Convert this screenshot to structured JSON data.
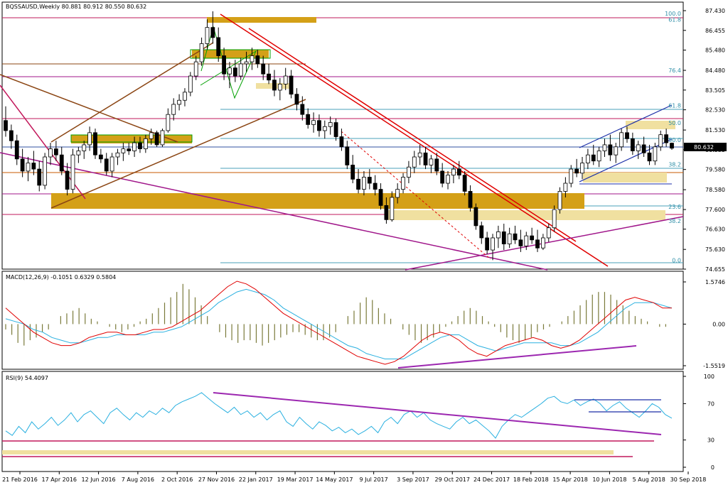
{
  "chart_data": [
    {
      "type": "candlestick",
      "title": "BQSSAUSD,Weekly  80.881 80.912 80.550 80.632",
      "price_axis_ticks": [
        "87.430",
        "86.455",
        "85.480",
        "84.480",
        "83.505",
        "82.530",
        "81.530",
        "80.555",
        "79.580",
        "78.580",
        "77.600",
        "76.630",
        "75.630",
        "74.655"
      ],
      "price_axis_values": [
        87.43,
        86.455,
        85.48,
        84.48,
        83.505,
        82.53,
        81.53,
        80.555,
        79.58,
        78.58,
        77.6,
        76.63,
        75.63,
        74.655
      ],
      "current_price_label": "80.632",
      "current_price": 80.632,
      "fib_levels": [
        {
          "label": "100.0",
          "value": 87.15
        },
        {
          "label": "61.8",
          "value": 86.85
        },
        {
          "label": "76.4",
          "value": 84.35
        },
        {
          "label": "61.8",
          "value": 82.6
        },
        {
          "label": "50.0",
          "value": 81.75
        },
        {
          "label": "50.0",
          "value": 80.9
        },
        {
          "label": "38.2",
          "value": 79.7
        },
        {
          "label": "23.6",
          "value": 77.6
        },
        {
          "label": "38.2",
          "value": 76.9
        },
        {
          "label": "0.0",
          "value": 74.95
        }
      ],
      "candles": [
        [
          82.0,
          82.7,
          81.2,
          81.5
        ],
        [
          81.5,
          81.8,
          80.6,
          81.0
        ],
        [
          81.0,
          81.3,
          79.8,
          80.1
        ],
        [
          80.1,
          80.6,
          79.2,
          79.5
        ],
        [
          79.5,
          80.2,
          79.0,
          79.9
        ],
        [
          79.9,
          80.5,
          79.3,
          79.6
        ],
        [
          79.6,
          80.0,
          78.5,
          78.8
        ],
        [
          78.8,
          80.4,
          78.6,
          80.2
        ],
        [
          80.2,
          80.9,
          79.8,
          80.6
        ],
        [
          80.6,
          81.0,
          80.0,
          80.3
        ],
        [
          80.3,
          80.7,
          79.3,
          79.5
        ],
        [
          79.5,
          79.9,
          78.3,
          78.6
        ],
        [
          78.6,
          80.6,
          78.4,
          80.3
        ],
        [
          80.3,
          80.7,
          79.9,
          80.5
        ],
        [
          80.5,
          81.0,
          80.1,
          80.8
        ],
        [
          80.8,
          81.7,
          80.5,
          81.4
        ],
        [
          81.4,
          81.6,
          80.1,
          80.3
        ],
        [
          80.3,
          80.6,
          79.9,
          80.1
        ],
        [
          80.1,
          80.4,
          79.3,
          79.5
        ],
        [
          79.5,
          80.4,
          79.2,
          80.2
        ],
        [
          80.2,
          80.6,
          79.8,
          80.4
        ],
        [
          80.4,
          80.9,
          80.0,
          80.6
        ],
        [
          80.6,
          80.9,
          80.3,
          80.5
        ],
        [
          80.5,
          81.2,
          80.2,
          80.9
        ],
        [
          80.9,
          81.2,
          80.4,
          80.6
        ],
        [
          80.6,
          81.3,
          80.4,
          81.1
        ],
        [
          81.1,
          81.6,
          80.8,
          81.4
        ],
        [
          81.4,
          81.5,
          80.7,
          80.8
        ],
        [
          80.8,
          81.6,
          80.7,
          81.5
        ],
        [
          81.5,
          82.6,
          81.4,
          82.3
        ],
        [
          82.3,
          83.1,
          82.0,
          82.8
        ],
        [
          82.8,
          83.3,
          82.5,
          83.0
        ],
        [
          83.0,
          83.6,
          82.7,
          83.4
        ],
        [
          83.4,
          84.4,
          83.2,
          84.2
        ],
        [
          84.2,
          85.2,
          84.0,
          84.9
        ],
        [
          84.9,
          86.1,
          84.7,
          85.8
        ],
        [
          85.8,
          87.0,
          85.5,
          86.6
        ],
        [
          86.6,
          87.4,
          85.8,
          86.1
        ],
        [
          86.1,
          86.6,
          84.9,
          85.2
        ],
        [
          85.2,
          85.6,
          84.0,
          84.3
        ],
        [
          84.3,
          84.9,
          83.6,
          84.6
        ],
        [
          84.6,
          85.0,
          83.9,
          84.2
        ],
        [
          84.2,
          85.1,
          84.0,
          84.8
        ],
        [
          84.8,
          85.4,
          84.4,
          84.9
        ],
        [
          84.9,
          85.6,
          84.5,
          85.2
        ],
        [
          85.2,
          85.5,
          84.6,
          84.8
        ],
        [
          84.8,
          85.2,
          84.0,
          84.3
        ],
        [
          84.3,
          84.8,
          83.8,
          84.0
        ],
        [
          84.0,
          84.5,
          83.2,
          83.5
        ],
        [
          83.5,
          84.1,
          83.0,
          83.8
        ],
        [
          83.8,
          84.6,
          83.5,
          84.2
        ],
        [
          84.2,
          84.5,
          83.1,
          83.3
        ],
        [
          83.3,
          83.6,
          82.5,
          82.8
        ],
        [
          82.8,
          83.2,
          82.0,
          82.3
        ],
        [
          82.3,
          82.6,
          81.6,
          81.8
        ],
        [
          81.8,
          82.4,
          81.4,
          82.0
        ],
        [
          82.0,
          82.3,
          81.2,
          81.5
        ],
        [
          81.5,
          82.0,
          81.1,
          81.7
        ],
        [
          81.7,
          82.2,
          81.3,
          81.9
        ],
        [
          81.9,
          82.1,
          81.0,
          81.2
        ],
        [
          81.2,
          81.6,
          80.5,
          80.7
        ],
        [
          80.7,
          81.0,
          79.6,
          79.8
        ],
        [
          79.8,
          80.3,
          78.9,
          79.1
        ],
        [
          79.1,
          79.6,
          78.4,
          78.6
        ],
        [
          78.6,
          79.5,
          78.3,
          79.2
        ],
        [
          79.2,
          79.6,
          78.6,
          78.9
        ],
        [
          78.9,
          79.3,
          78.3,
          78.6
        ],
        [
          78.6,
          78.9,
          77.6,
          77.8
        ],
        [
          77.8,
          78.2,
          76.9,
          77.1
        ],
        [
          77.1,
          78.5,
          77.0,
          78.2
        ],
        [
          78.2,
          78.9,
          77.9,
          78.6
        ],
        [
          78.6,
          79.4,
          78.4,
          79.2
        ],
        [
          79.2,
          80.0,
          78.9,
          79.7
        ],
        [
          79.7,
          80.5,
          79.4,
          80.2
        ],
        [
          80.2,
          80.8,
          79.8,
          80.4
        ],
        [
          80.4,
          80.7,
          79.6,
          79.8
        ],
        [
          79.8,
          80.3,
          79.4,
          80.1
        ],
        [
          80.1,
          80.4,
          79.3,
          79.5
        ],
        [
          79.5,
          79.9,
          78.7,
          78.9
        ],
        [
          78.9,
          79.5,
          78.6,
          79.3
        ],
        [
          79.3,
          79.8,
          78.9,
          79.6
        ],
        [
          79.6,
          80.0,
          79.1,
          79.3
        ],
        [
          79.3,
          79.5,
          78.3,
          78.5
        ],
        [
          78.5,
          78.8,
          77.5,
          77.7
        ],
        [
          77.7,
          77.9,
          76.6,
          76.8
        ],
        [
          76.8,
          77.0,
          75.9,
          76.2
        ],
        [
          76.2,
          76.5,
          75.4,
          75.6
        ],
        [
          75.6,
          76.4,
          75.1,
          76.2
        ],
        [
          76.2,
          76.8,
          75.7,
          76.5
        ],
        [
          76.5,
          76.9,
          75.6,
          75.9
        ],
        [
          75.9,
          76.7,
          75.7,
          76.4
        ],
        [
          76.4,
          76.8,
          75.9,
          76.1
        ],
        [
          76.1,
          76.6,
          75.5,
          75.8
        ],
        [
          75.8,
          76.5,
          75.6,
          76.3
        ],
        [
          76.3,
          76.7,
          75.9,
          76.1
        ],
        [
          76.1,
          76.6,
          75.5,
          75.7
        ],
        [
          75.7,
          76.4,
          75.6,
          76.2
        ],
        [
          76.2,
          76.9,
          76.0,
          76.7
        ],
        [
          76.7,
          77.8,
          76.5,
          77.6
        ],
        [
          77.6,
          78.7,
          77.4,
          78.5
        ],
        [
          78.5,
          79.2,
          78.2,
          78.9
        ],
        [
          78.9,
          79.8,
          78.7,
          79.6
        ],
        [
          79.6,
          80.1,
          79.2,
          79.4
        ],
        [
          79.4,
          80.2,
          79.1,
          79.9
        ],
        [
          79.9,
          80.6,
          79.6,
          80.3
        ],
        [
          80.3,
          80.8,
          79.8,
          80.0
        ],
        [
          80.0,
          80.7,
          79.7,
          80.5
        ],
        [
          80.5,
          81.1,
          80.2,
          80.8
        ],
        [
          80.8,
          81.3,
          80.0,
          80.3
        ],
        [
          80.3,
          80.9,
          79.9,
          80.7
        ],
        [
          80.7,
          81.6,
          80.5,
          81.4
        ],
        [
          81.4,
          81.7,
          80.9,
          81.1
        ],
        [
          81.1,
          81.4,
          80.3,
          80.5
        ],
        [
          80.5,
          81.0,
          80.1,
          80.8
        ],
        [
          80.8,
          81.2,
          80.2,
          80.4
        ],
        [
          80.4,
          80.8,
          79.8,
          80.0
        ],
        [
          80.0,
          80.9,
          79.8,
          80.7
        ],
        [
          80.7,
          81.5,
          80.5,
          81.3
        ],
        [
          81.3,
          81.6,
          80.7,
          80.9
        ],
        [
          80.881,
          80.912,
          80.55,
          80.632
        ]
      ],
      "x_tick_labels": [
        "21 Feb 2016",
        "17 Apr 2016",
        "12 Jun 2016",
        "7 Aug 2016",
        "2 Oct 2016",
        "27 Nov 2016",
        "22 Jan 2017",
        "19 Mar 2017",
        "14 May 2017",
        "9 Jul 2017",
        "3 Sep 2017",
        "29 Oct 2017",
        "24 Dec 2017",
        "18 Feb 2018",
        "15 Apr 2018",
        "10 Jun 2018",
        "5 Aug 2018",
        "30 Sep 2018"
      ]
    },
    {
      "type": "macd",
      "title": "MACD(12,26,9) -0.1051 0.6329 0.5804",
      "axis_ticks": [
        "1.5746",
        "0.00",
        "-1.5519"
      ],
      "axis_values": [
        1.5746,
        0.0,
        -1.5519
      ],
      "histogram": [
        -0.2,
        -0.4,
        -0.7,
        -0.8,
        -0.6,
        -0.5,
        -0.3,
        -0.2,
        0.0,
        0.3,
        0.4,
        0.5,
        0.6,
        0.4,
        0.2,
        0.1,
        0.0,
        -0.1,
        -0.2,
        -0.3,
        -0.2,
        -0.1,
        0.1,
        0.2,
        0.4,
        0.6,
        0.8,
        1.0,
        1.2,
        1.5,
        1.3,
        1.0,
        0.7,
        0.3,
        0.0,
        -0.3,
        -0.5,
        -0.6,
        -0.7,
        -0.6,
        -0.6,
        -0.7,
        -0.8,
        -0.7,
        -0.6,
        -0.5,
        -0.4,
        -0.3,
        -0.3,
        -0.4,
        -0.5,
        -0.6,
        -0.6,
        -0.5,
        -0.3,
        0.0,
        0.3,
        0.5,
        0.8,
        1.0,
        0.9,
        0.6,
        0.4,
        0.2,
        0.0,
        -0.2,
        -0.4,
        -0.6,
        -0.7,
        -0.6,
        -0.5,
        -0.3,
        -0.1,
        0.1,
        0.3,
        0.5,
        0.6,
        0.5,
        0.3,
        0.1,
        -0.1,
        -0.3,
        -0.5,
        -0.6,
        -0.7,
        -0.6,
        -0.5,
        -0.3,
        -0.2,
        -0.1,
        0.0,
        0.1,
        0.3,
        0.5,
        0.7,
        0.9,
        1.1,
        1.2,
        1.2,
        1.1,
        0.9,
        0.7,
        0.5,
        0.3,
        0.2,
        0.1,
        0.0,
        -0.1,
        -0.1,
        0.0
      ],
      "macd_line": [
        0.6,
        0.3,
        0.0,
        -0.3,
        -0.5,
        -0.7,
        -0.8,
        -0.8,
        -0.7,
        -0.5,
        -0.4,
        -0.3,
        -0.3,
        -0.4,
        -0.4,
        -0.3,
        -0.2,
        -0.2,
        -0.1,
        0.1,
        0.3,
        0.5,
        0.8,
        1.1,
        1.4,
        1.6,
        1.5,
        1.3,
        1.0,
        0.7,
        0.4,
        0.2,
        0.0,
        -0.2,
        -0.4,
        -0.6,
        -0.8,
        -1.0,
        -1.2,
        -1.3,
        -1.4,
        -1.5,
        -1.4,
        -1.2,
        -0.9,
        -0.6,
        -0.4,
        -0.3,
        -0.4,
        -0.6,
        -0.9,
        -1.1,
        -1.2,
        -1.0,
        -0.8,
        -0.7,
        -0.6,
        -0.5,
        -0.6,
        -0.8,
        -0.9,
        -0.8,
        -0.6,
        -0.3,
        0.0,
        0.3,
        0.6,
        0.9,
        1.0,
        0.9,
        0.8,
        0.6,
        0.6
      ],
      "signal_line": [
        0.2,
        0.1,
        0.0,
        -0.2,
        -0.3,
        -0.5,
        -0.6,
        -0.7,
        -0.7,
        -0.6,
        -0.5,
        -0.5,
        -0.4,
        -0.4,
        -0.4,
        -0.4,
        -0.3,
        -0.3,
        -0.2,
        -0.1,
        0.1,
        0.3,
        0.5,
        0.8,
        1.0,
        1.2,
        1.3,
        1.2,
        1.1,
        0.9,
        0.6,
        0.4,
        0.2,
        0.0,
        -0.2,
        -0.4,
        -0.6,
        -0.8,
        -0.9,
        -1.1,
        -1.2,
        -1.3,
        -1.3,
        -1.3,
        -1.1,
        -0.9,
        -0.7,
        -0.5,
        -0.4,
        -0.4,
        -0.6,
        -0.8,
        -0.9,
        -1.0,
        -0.9,
        -0.8,
        -0.7,
        -0.7,
        -0.7,
        -0.7,
        -0.8,
        -0.8,
        -0.7,
        -0.5,
        -0.3,
        0.0,
        0.3,
        0.6,
        0.8,
        0.8,
        0.8,
        0.7,
        0.6
      ]
    },
    {
      "type": "rsi",
      "title": "RSI(9) 54.4097",
      "axis_ticks": [
        "100",
        "70",
        "30",
        "0"
      ],
      "axis_values": [
        100,
        70,
        30,
        0
      ],
      "values": [
        40,
        35,
        45,
        38,
        50,
        42,
        48,
        55,
        46,
        52,
        60,
        50,
        58,
        62,
        55,
        48,
        60,
        65,
        58,
        52,
        60,
        55,
        62,
        58,
        65,
        60,
        68,
        72,
        75,
        78,
        82,
        76,
        70,
        65,
        60,
        66,
        58,
        62,
        55,
        60,
        52,
        58,
        62,
        50,
        45,
        55,
        48,
        42,
        50,
        46,
        40,
        44,
        38,
        42,
        36,
        40,
        45,
        38,
        50,
        55,
        48,
        58,
        62,
        55,
        60,
        52,
        48,
        45,
        42,
        50,
        55,
        48,
        52,
        46,
        40,
        32,
        45,
        52,
        58,
        55,
        60,
        65,
        70,
        76,
        78,
        72,
        70,
        74,
        68,
        72,
        75,
        70,
        62,
        68,
        72,
        65,
        60,
        55,
        62,
        70,
        66,
        58,
        54
      ]
    }
  ]
}
